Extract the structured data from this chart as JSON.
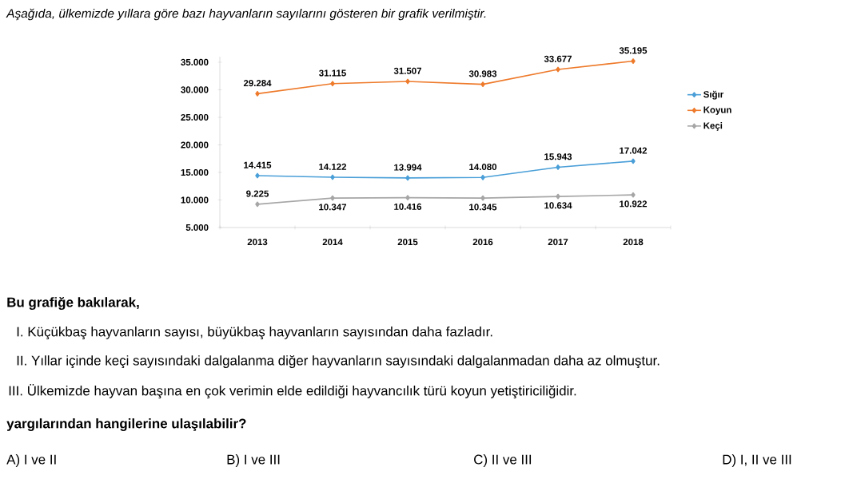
{
  "chart_data": {
    "type": "line",
    "title": "Aşağıda, ülkemizde yıllara göre bazı hayvanların sayılarını gösteren bir grafik verilmiştir.",
    "categories": [
      "2013",
      "2014",
      "2015",
      "2016",
      "2017",
      "2018"
    ],
    "series": [
      {
        "name": "Sığır",
        "color": "#4a9fd8",
        "values": [
          14415,
          14122,
          13994,
          14080,
          15943,
          17042
        ],
        "value_labels": [
          "14.415",
          "14.122",
          "13.994",
          "14.080",
          "15.943",
          "17.042"
        ]
      },
      {
        "name": "Koyun",
        "color": "#ee7a2b",
        "values": [
          29284,
          31115,
          31507,
          30983,
          33677,
          35195
        ],
        "value_labels": [
          "29.284",
          "31.115",
          "31.507",
          "30.983",
          "33.677",
          "35.195"
        ]
      },
      {
        "name": "Keçi",
        "color": "#a6a6a6",
        "values": [
          9225,
          10347,
          10416,
          10345,
          10634,
          10922
        ],
        "value_labels": [
          "9.225",
          "10.347",
          "10.416",
          "10.345",
          "10.634",
          "10.922"
        ]
      }
    ],
    "ylim": [
      5000,
      36000
    ],
    "yticks": [
      {
        "value": 5000,
        "label": "5.000"
      },
      {
        "value": 10000,
        "label": "10.000"
      },
      {
        "value": 15000,
        "label": "15.000"
      },
      {
        "value": 20000,
        "label": "20.000"
      },
      {
        "value": 25000,
        "label": "25.000"
      },
      {
        "value": 30000,
        "label": "30.000"
      },
      {
        "value": 35000,
        "label": "35.000"
      }
    ],
    "legend": "right",
    "marker": "diamond",
    "grid": false,
    "annotations": [
      "Bu grafiğe bakılarak,",
      "I. Küçükbaş hayvanların sayısı, büyükbaş hayvanların sayısından daha fazladır.",
      "II. Yıllar içinde keçi sayısındaki dalgalanma diğer hayvanların sayısındaki dalgalanmadan daha az olmuştur.",
      "III. Ülkemizde hayvan başına en çok verimin elde edildiği hayvancılık türü koyun yetiştiriciliğidir.",
      "yargılarından hangilerine ulaşılabilir?",
      "A) I ve II",
      "B) I ve III",
      "C) II ve III",
      "D) I, II ve III"
    ]
  }
}
